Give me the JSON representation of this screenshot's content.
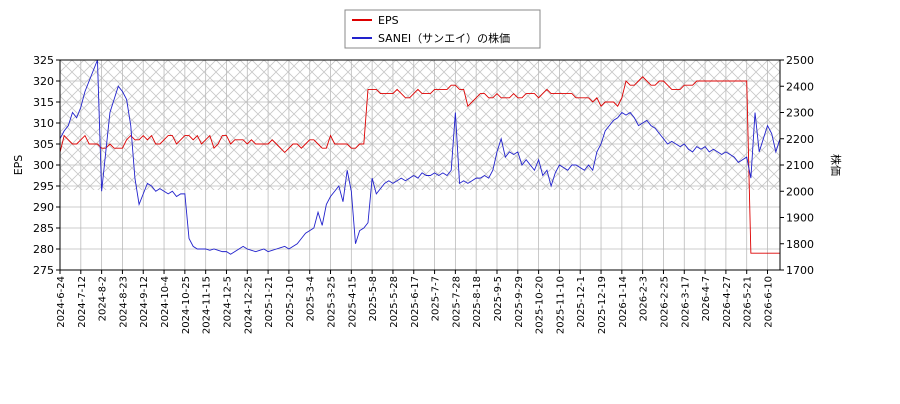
{
  "chart_data": {
    "type": "line",
    "x_label": null,
    "y_label": "EPS",
    "y2_label": "株価",
    "categories": [
      "2024-6-24",
      null,
      null,
      null,
      null,
      "2024-7-12",
      null,
      null,
      null,
      null,
      "2024-8-2",
      null,
      null,
      null,
      null,
      "2024-8-23",
      null,
      null,
      null,
      null,
      "2024-9-12",
      null,
      null,
      null,
      null,
      "2024-10-4",
      null,
      null,
      null,
      null,
      "2024-10-25",
      null,
      null,
      null,
      null,
      "2024-11-15",
      null,
      null,
      null,
      null,
      "2024-12-5",
      null,
      null,
      null,
      null,
      "2024-12-25",
      null,
      null,
      null,
      null,
      "2025-1-21",
      null,
      null,
      null,
      null,
      "2025-2-10",
      null,
      null,
      null,
      null,
      "2025-3-4",
      null,
      null,
      null,
      null,
      "2025-3-25",
      null,
      null,
      null,
      null,
      "2025-4-15",
      null,
      null,
      null,
      null,
      "2025-5-8",
      null,
      null,
      null,
      null,
      "2025-5-28",
      null,
      null,
      null,
      null,
      "2025-6-17",
      null,
      null,
      null,
      null,
      "2025-7-7",
      null,
      null,
      null,
      null,
      "2025-7-28",
      null,
      null,
      null,
      null,
      "2025-8-18",
      null,
      null,
      null,
      null,
      "2025-9-5",
      null,
      null,
      null,
      null,
      "2025-9-29",
      null,
      null,
      null,
      null,
      "2025-10-20",
      null,
      null,
      null,
      null,
      "2025-11-10",
      null,
      null,
      null,
      null,
      "2025-12-1",
      null,
      null,
      null,
      null,
      "2025-12-19",
      null,
      null,
      null,
      null,
      "2026-1-14",
      null,
      null,
      null,
      null,
      "2026-2-3",
      null,
      null,
      null,
      null,
      "2026-2-25",
      null,
      null,
      null,
      null,
      "2026-3-17",
      null,
      null,
      null,
      null,
      "2026-4-7",
      null,
      null,
      null,
      null,
      "2026-4-27",
      null,
      null,
      null,
      null,
      "2026-5-21",
      null,
      null,
      null,
      null,
      "2026-6-10",
      null,
      null,
      null
    ],
    "series": [
      {
        "name": "EPS",
        "color": "#dd0000",
        "axis": "y",
        "values": [
          303,
          307,
          306,
          305,
          305,
          306,
          307,
          305,
          305,
          305,
          304,
          304,
          305,
          304,
          304,
          304,
          306,
          307,
          306,
          306,
          307,
          306,
          307,
          305,
          305,
          306,
          307,
          307,
          305,
          306,
          307,
          307,
          306,
          307,
          305,
          306,
          307,
          304,
          305,
          307,
          307,
          305,
          306,
          306,
          306,
          305,
          306,
          305,
          305,
          305,
          305,
          306,
          305,
          304,
          303,
          304,
          305,
          305,
          304,
          305,
          306,
          306,
          305,
          304,
          304,
          307,
          305,
          305,
          305,
          305,
          304,
          304,
          305,
          305,
          318,
          318,
          318,
          317,
          317,
          317,
          317,
          318,
          317,
          316,
          316,
          317,
          318,
          317,
          317,
          317,
          318,
          318,
          318,
          318,
          319,
          319,
          318,
          318,
          314,
          315,
          316,
          317,
          317,
          316,
          316,
          317,
          316,
          316,
          316,
          317,
          316,
          316,
          317,
          317,
          317,
          316,
          317,
          318,
          317,
          317,
          317,
          317,
          317,
          317,
          316,
          316,
          316,
          316,
          315,
          316,
          314,
          315,
          315,
          315,
          314,
          316,
          320,
          319,
          319,
          320,
          321,
          320,
          319,
          319,
          320,
          320,
          319,
          318,
          318,
          318,
          319,
          319,
          319,
          320,
          320,
          320,
          320,
          320,
          320,
          320,
          320,
          320,
          320,
          320,
          320,
          320,
          279,
          279,
          279,
          279,
          279,
          279,
          279,
          279
        ]
      },
      {
        "name": "SANEI（サンエイ）の株価",
        "color": "#2222cc",
        "axis": "y2",
        "values": [
          2200,
          2230,
          2250,
          2300,
          2280,
          2320,
          2380,
          2420,
          2460,
          2500,
          2000,
          2150,
          2300,
          2350,
          2400,
          2380,
          2350,
          2250,
          2050,
          1950,
          1990,
          2030,
          2020,
          2000,
          2010,
          2000,
          1990,
          2000,
          1980,
          1990,
          1990,
          1820,
          1790,
          1780,
          1780,
          1780,
          1775,
          1780,
          1775,
          1770,
          1770,
          1760,
          1770,
          1780,
          1790,
          1780,
          1775,
          1770,
          1775,
          1780,
          1770,
          1775,
          1780,
          1785,
          1790,
          1780,
          1790,
          1800,
          1820,
          1840,
          1850,
          1860,
          1920,
          1870,
          1950,
          1980,
          2000,
          2020,
          1960,
          2080,
          2000,
          1800,
          1850,
          1860,
          1880,
          2050,
          1990,
          2010,
          2030,
          2040,
          2030,
          2040,
          2050,
          2040,
          2050,
          2060,
          2050,
          2070,
          2060,
          2060,
          2070,
          2060,
          2070,
          2060,
          2080,
          2300,
          2030,
          2040,
          2030,
          2040,
          2050,
          2050,
          2060,
          2050,
          2080,
          2150,
          2200,
          2130,
          2150,
          2140,
          2150,
          2100,
          2120,
          2100,
          2080,
          2120,
          2060,
          2080,
          2020,
          2070,
          2100,
          2090,
          2080,
          2100,
          2100,
          2090,
          2080,
          2100,
          2080,
          2150,
          2180,
          2230,
          2250,
          2270,
          2280,
          2300,
          2290,
          2300,
          2280,
          2250,
          2260,
          2270,
          2250,
          2240,
          2220,
          2200,
          2180,
          2190,
          2180,
          2170,
          2180,
          2160,
          2150,
          2170,
          2160,
          2170,
          2150,
          2160,
          2150,
          2140,
          2150,
          2140,
          2130,
          2110,
          2120,
          2130,
          2050,
          2300,
          2150,
          2200,
          2250,
          2220,
          2150,
          2200
        ]
      }
    ],
    "ylim": [
      275,
      325
    ],
    "yticks": [
      275,
      280,
      285,
      290,
      295,
      300,
      305,
      310,
      315,
      320,
      325
    ],
    "y2lim": [
      1700,
      2500
    ],
    "y2ticks": [
      1700,
      1800,
      1900,
      2000,
      2100,
      2200,
      2300,
      2400,
      2500
    ],
    "grid": true,
    "legend": "top"
  }
}
